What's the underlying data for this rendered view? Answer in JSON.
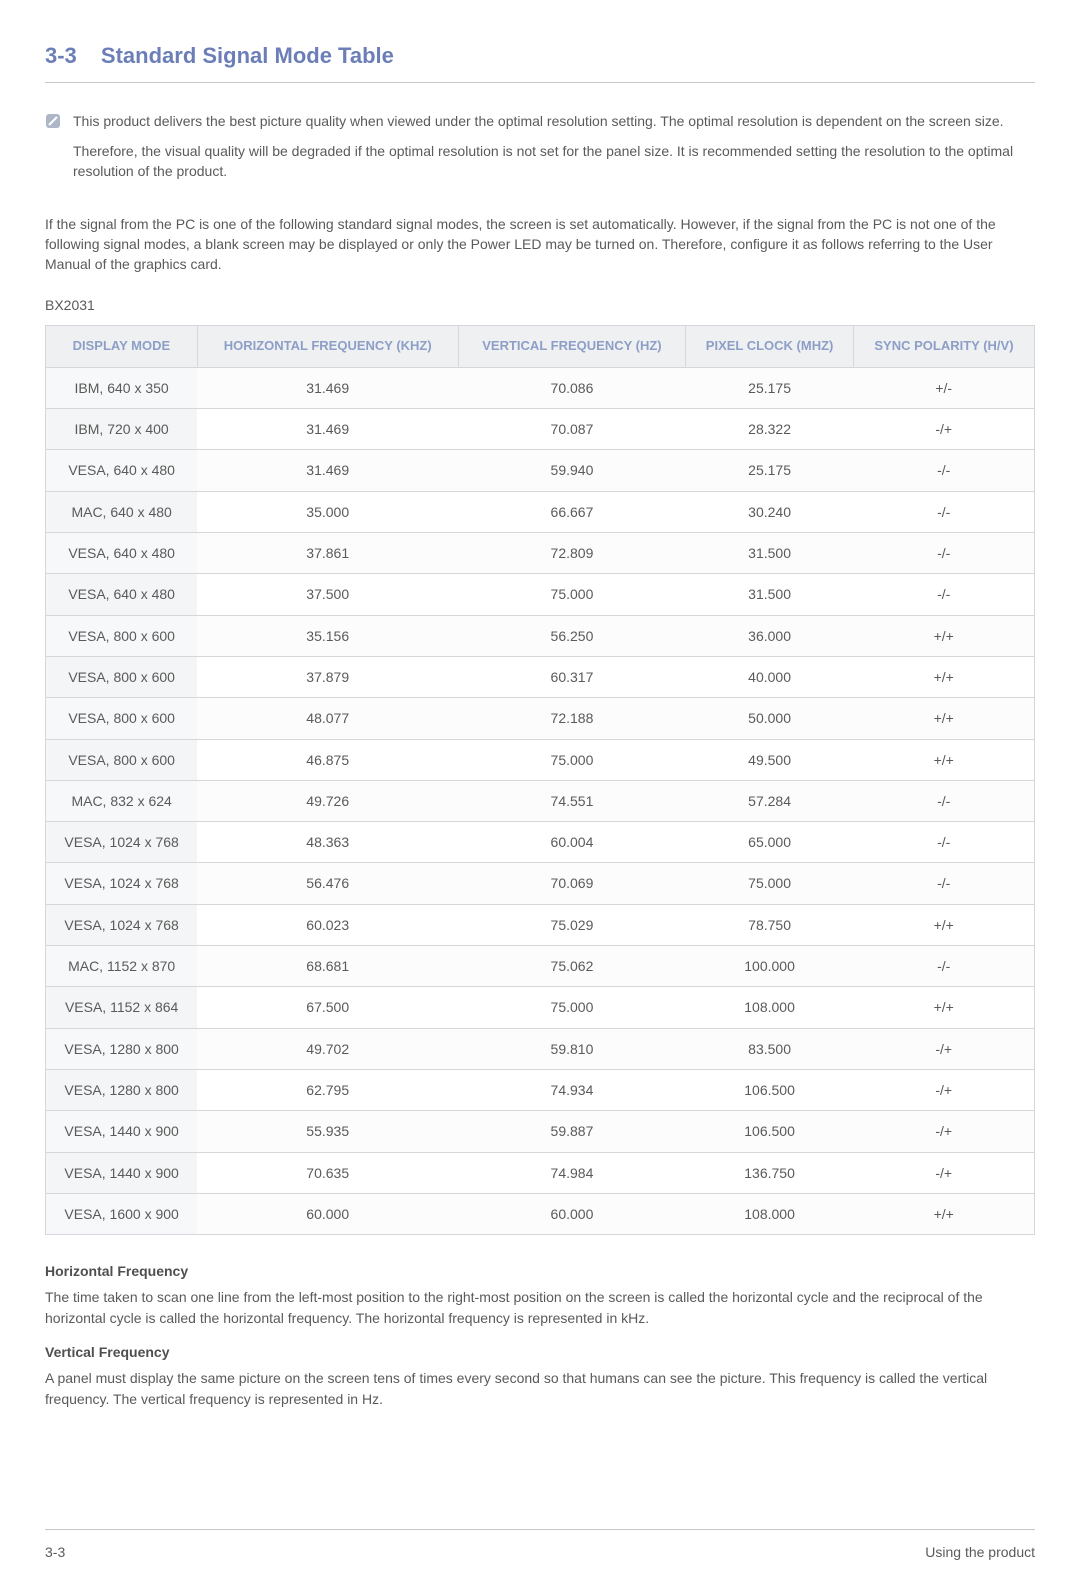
{
  "section": {
    "number": "3-3",
    "title": "Standard Signal Mode Table"
  },
  "note": {
    "p1": "This product delivers the best picture quality when viewed under the optimal resolution setting. The optimal resolution is dependent on the screen size.",
    "p2": "Therefore, the visual quality will be degraded if the optimal resolution is not set for the panel size. It is recommended setting the resolution to the optimal resolution of the product."
  },
  "intro": "If the signal from the PC is one of the following standard signal modes, the screen is set automatically. However, if the signal from the PC is not one of the following signal modes, a blank screen may be displayed or only the Power LED may be turned on. Therefore, configure it as follows referring to the User Manual of the graphics card.",
  "model": "BX2031",
  "table": {
    "columns": [
      "DISPLAY MODE",
      "HORIZONTAL FREQUENCY (KHZ)",
      "VERTICAL FREQUENCY (HZ)",
      "PIXEL CLOCK (MHZ)",
      "SYNC POLARITY (H/V)"
    ],
    "rows": [
      [
        "IBM, 640 x 350",
        "31.469",
        "70.086",
        "25.175",
        "+/-"
      ],
      [
        "IBM, 720 x 400",
        "31.469",
        "70.087",
        "28.322",
        "-/+"
      ],
      [
        "VESA, 640 x 480",
        "31.469",
        "59.940",
        "25.175",
        "-/-"
      ],
      [
        "MAC, 640 x 480",
        "35.000",
        "66.667",
        "30.240",
        "-/-"
      ],
      [
        "VESA, 640 x 480",
        "37.861",
        "72.809",
        "31.500",
        "-/-"
      ],
      [
        "VESA, 640 x 480",
        "37.500",
        "75.000",
        "31.500",
        "-/-"
      ],
      [
        "VESA, 800 x 600",
        "35.156",
        "56.250",
        "36.000",
        "+/+"
      ],
      [
        "VESA, 800 x 600",
        "37.879",
        "60.317",
        "40.000",
        "+/+"
      ],
      [
        "VESA, 800 x 600",
        "48.077",
        "72.188",
        "50.000",
        "+/+"
      ],
      [
        "VESA, 800 x 600",
        "46.875",
        "75.000",
        "49.500",
        "+/+"
      ],
      [
        "MAC, 832 x 624",
        "49.726",
        "74.551",
        "57.284",
        "-/-"
      ],
      [
        "VESA, 1024 x 768",
        "48.363",
        "60.004",
        "65.000",
        "-/-"
      ],
      [
        "VESA, 1024 x 768",
        "56.476",
        "70.069",
        "75.000",
        "-/-"
      ],
      [
        "VESA, 1024 x 768",
        "60.023",
        "75.029",
        "78.750",
        "+/+"
      ],
      [
        "MAC, 1152 x 870",
        "68.681",
        "75.062",
        "100.000",
        "-/-"
      ],
      [
        "VESA, 1152 x 864",
        "67.500",
        "75.000",
        "108.000",
        "+/+"
      ],
      [
        "VESA, 1280 x 800",
        "49.702",
        "59.810",
        "83.500",
        "-/+"
      ],
      [
        "VESA, 1280 x 800",
        "62.795",
        "74.934",
        "106.500",
        "-/+"
      ],
      [
        "VESA, 1440 x 900",
        "55.935",
        "59.887",
        "106.500",
        "-/+"
      ],
      [
        "VESA, 1440 x 900",
        "70.635",
        "74.984",
        "136.750",
        "-/+"
      ],
      [
        "VESA, 1600 x 900",
        "60.000",
        "60.000",
        "108.000",
        "+/+"
      ]
    ],
    "header_bg": "#eef0f2",
    "header_color": "#8d9ec7",
    "border_color": "#d5d7da"
  },
  "definitions": {
    "hf_title": "Horizontal Frequency",
    "hf_text": "The time taken to scan one line from the left-most position to the right-most position on the screen is called the horizontal cycle and the reciprocal of the horizontal cycle is called the horizontal frequency. The horizontal frequency is represented in kHz.",
    "vf_title": "Vertical Frequency",
    "vf_text": "A panel must display the same picture on the screen tens of times every second so that humans can see the picture. This frequency is called the vertical frequency. The vertical frequency is represented in Hz."
  },
  "footer": {
    "left": "3-3",
    "right": "Using the product"
  }
}
